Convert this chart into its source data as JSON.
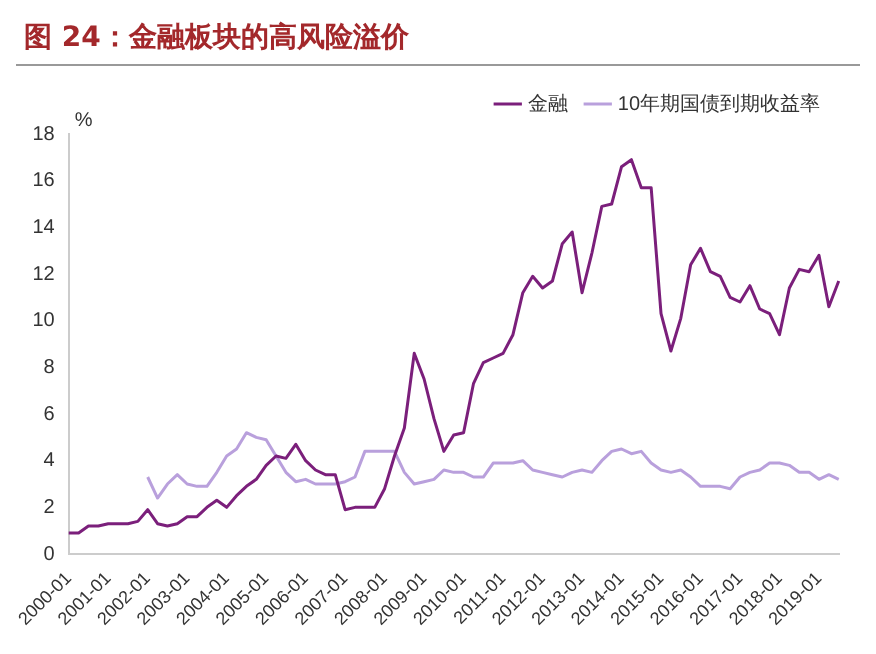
{
  "chart_data": {
    "type": "line",
    "title": "图 24：金融板块的高风险溢价",
    "ylabel": "%",
    "categories": [
      "2000-01",
      null,
      null,
      null,
      "2001-01",
      null,
      null,
      null,
      "2002-01",
      null,
      null,
      null,
      "2003-01",
      null,
      null,
      null,
      "2004-01",
      null,
      null,
      null,
      "2005-01",
      null,
      null,
      null,
      "2006-01",
      null,
      null,
      null,
      "2007-01",
      null,
      null,
      null,
      "2008-01",
      null,
      null,
      null,
      "2009-01",
      null,
      null,
      null,
      "2010-01",
      null,
      null,
      null,
      "2011-01",
      null,
      null,
      null,
      "2012-01",
      null,
      null,
      null,
      "2013-01",
      null,
      null,
      null,
      "2014-01",
      null,
      null,
      null,
      "2015-01",
      null,
      null,
      null,
      "2016-01",
      null,
      null,
      null,
      "2017-01",
      null,
      null,
      null,
      "2018-01",
      null,
      null,
      null,
      "2019-01",
      null,
      null
    ],
    "series": [
      {
        "name": "金融",
        "color": "#7b1f7b",
        "values": [
          0.9,
          0.9,
          1.2,
          1.2,
          1.3,
          1.3,
          1.3,
          1.4,
          1.9,
          1.3,
          1.2,
          1.3,
          1.6,
          1.6,
          2.0,
          2.3,
          2.0,
          2.5,
          2.9,
          3.2,
          3.8,
          4.2,
          4.1,
          4.7,
          4.0,
          3.6,
          3.4,
          3.4,
          1.9,
          2.0,
          2.0,
          2.0,
          2.8,
          4.2,
          5.4,
          8.6,
          7.5,
          5.8,
          4.4,
          5.1,
          5.2,
          7.3,
          8.2,
          8.4,
          8.6,
          9.4,
          11.2,
          11.9,
          11.4,
          11.7,
          13.3,
          13.8,
          11.2,
          12.9,
          14.9,
          15.0,
          16.6,
          16.9,
          15.7,
          15.7,
          10.3,
          8.7,
          10.1,
          12.4,
          13.1,
          12.1,
          11.9,
          11.0,
          10.8,
          11.5,
          10.5,
          10.3,
          9.4,
          11.4,
          12.2,
          12.1,
          12.8,
          10.6,
          11.7
        ]
      },
      {
        "name": "10年期国债到期收益率",
        "color": "#b9a0dc",
        "values": [
          null,
          null,
          null,
          null,
          null,
          null,
          null,
          null,
          3.3,
          2.4,
          3.0,
          3.4,
          3.0,
          2.9,
          2.9,
          3.5,
          4.2,
          4.5,
          5.2,
          5.0,
          4.9,
          4.2,
          3.5,
          3.1,
          3.2,
          3.0,
          3.0,
          3.0,
          3.1,
          3.3,
          4.4,
          4.4,
          4.4,
          4.4,
          3.5,
          3.0,
          3.1,
          3.2,
          3.6,
          3.5,
          3.5,
          3.3,
          3.3,
          3.9,
          3.9,
          3.9,
          4.0,
          3.6,
          3.5,
          3.4,
          3.3,
          3.5,
          3.6,
          3.5,
          4.0,
          4.4,
          4.5,
          4.3,
          4.4,
          3.9,
          3.6,
          3.5,
          3.6,
          3.3,
          2.9,
          2.9,
          2.9,
          2.8,
          3.3,
          3.5,
          3.6,
          3.9,
          3.9,
          3.8,
          3.5,
          3.5,
          3.2,
          3.4,
          3.2
        ]
      }
    ],
    "ylim": [
      0,
      18
    ],
    "yticks": [
      0,
      2,
      4,
      6,
      8,
      10,
      12,
      14,
      16,
      18
    ],
    "grid": false,
    "legend": "top right",
    "marker": "none",
    "line_style": "solid"
  }
}
